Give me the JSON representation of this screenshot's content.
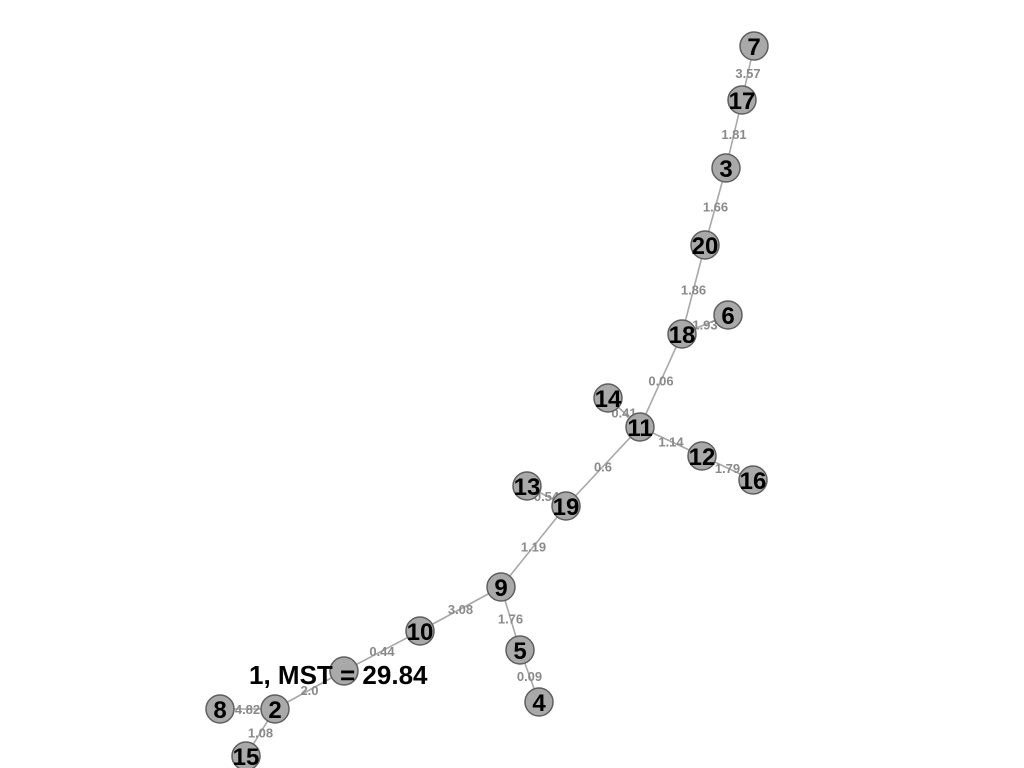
{
  "title": "1, MST = 29.84",
  "colors": {
    "node_fill": "#a9a9a9",
    "node_stroke": "#5e5e5e",
    "edge": "#a8a8a8",
    "edge_label": "#8a8a8a",
    "node_label": "#000000"
  },
  "nodes": [
    {
      "id": "1",
      "label": ""
    },
    {
      "id": "2",
      "label": "2"
    },
    {
      "id": "3",
      "label": "3"
    },
    {
      "id": "4",
      "label": "4"
    },
    {
      "id": "5",
      "label": "5"
    },
    {
      "id": "6",
      "label": "6"
    },
    {
      "id": "7",
      "label": "7"
    },
    {
      "id": "8",
      "label": "8"
    },
    {
      "id": "9",
      "label": "9"
    },
    {
      "id": "10",
      "label": "10"
    },
    {
      "id": "11",
      "label": "11"
    },
    {
      "id": "12",
      "label": "12"
    },
    {
      "id": "13",
      "label": "13"
    },
    {
      "id": "14",
      "label": "14"
    },
    {
      "id": "15",
      "label": "15"
    },
    {
      "id": "16",
      "label": "16"
    },
    {
      "id": "17",
      "label": "17"
    },
    {
      "id": "18",
      "label": "18"
    },
    {
      "id": "19",
      "label": "19"
    },
    {
      "id": "20",
      "label": "20"
    }
  ],
  "edges": [
    {
      "source": "7",
      "target": "17",
      "weight": "3.57"
    },
    {
      "source": "17",
      "target": "3",
      "weight": "1.81"
    },
    {
      "source": "3",
      "target": "20",
      "weight": "1.66"
    },
    {
      "source": "20",
      "target": "18",
      "weight": "1.86"
    },
    {
      "source": "18",
      "target": "6",
      "weight": "1.93"
    },
    {
      "source": "18",
      "target": "11",
      "weight": "0.06"
    },
    {
      "source": "14",
      "target": "11",
      "weight": "0.41"
    },
    {
      "source": "11",
      "target": "12",
      "weight": "1.14"
    },
    {
      "source": "12",
      "target": "16",
      "weight": "1.79"
    },
    {
      "source": "11",
      "target": "19",
      "weight": "0.6"
    },
    {
      "source": "13",
      "target": "19",
      "weight": "0.54"
    },
    {
      "source": "19",
      "target": "9",
      "weight": "1.19"
    },
    {
      "source": "9",
      "target": "10",
      "weight": "3.08"
    },
    {
      "source": "9",
      "target": "5",
      "weight": "1.76"
    },
    {
      "source": "5",
      "target": "4",
      "weight": "0.09"
    },
    {
      "source": "10",
      "target": "1",
      "weight": "0.44"
    },
    {
      "source": "1",
      "target": "2",
      "weight": "2.0"
    },
    {
      "source": "8",
      "target": "2",
      "weight": "4.82"
    },
    {
      "source": "2",
      "target": "15",
      "weight": "1.08"
    }
  ]
}
